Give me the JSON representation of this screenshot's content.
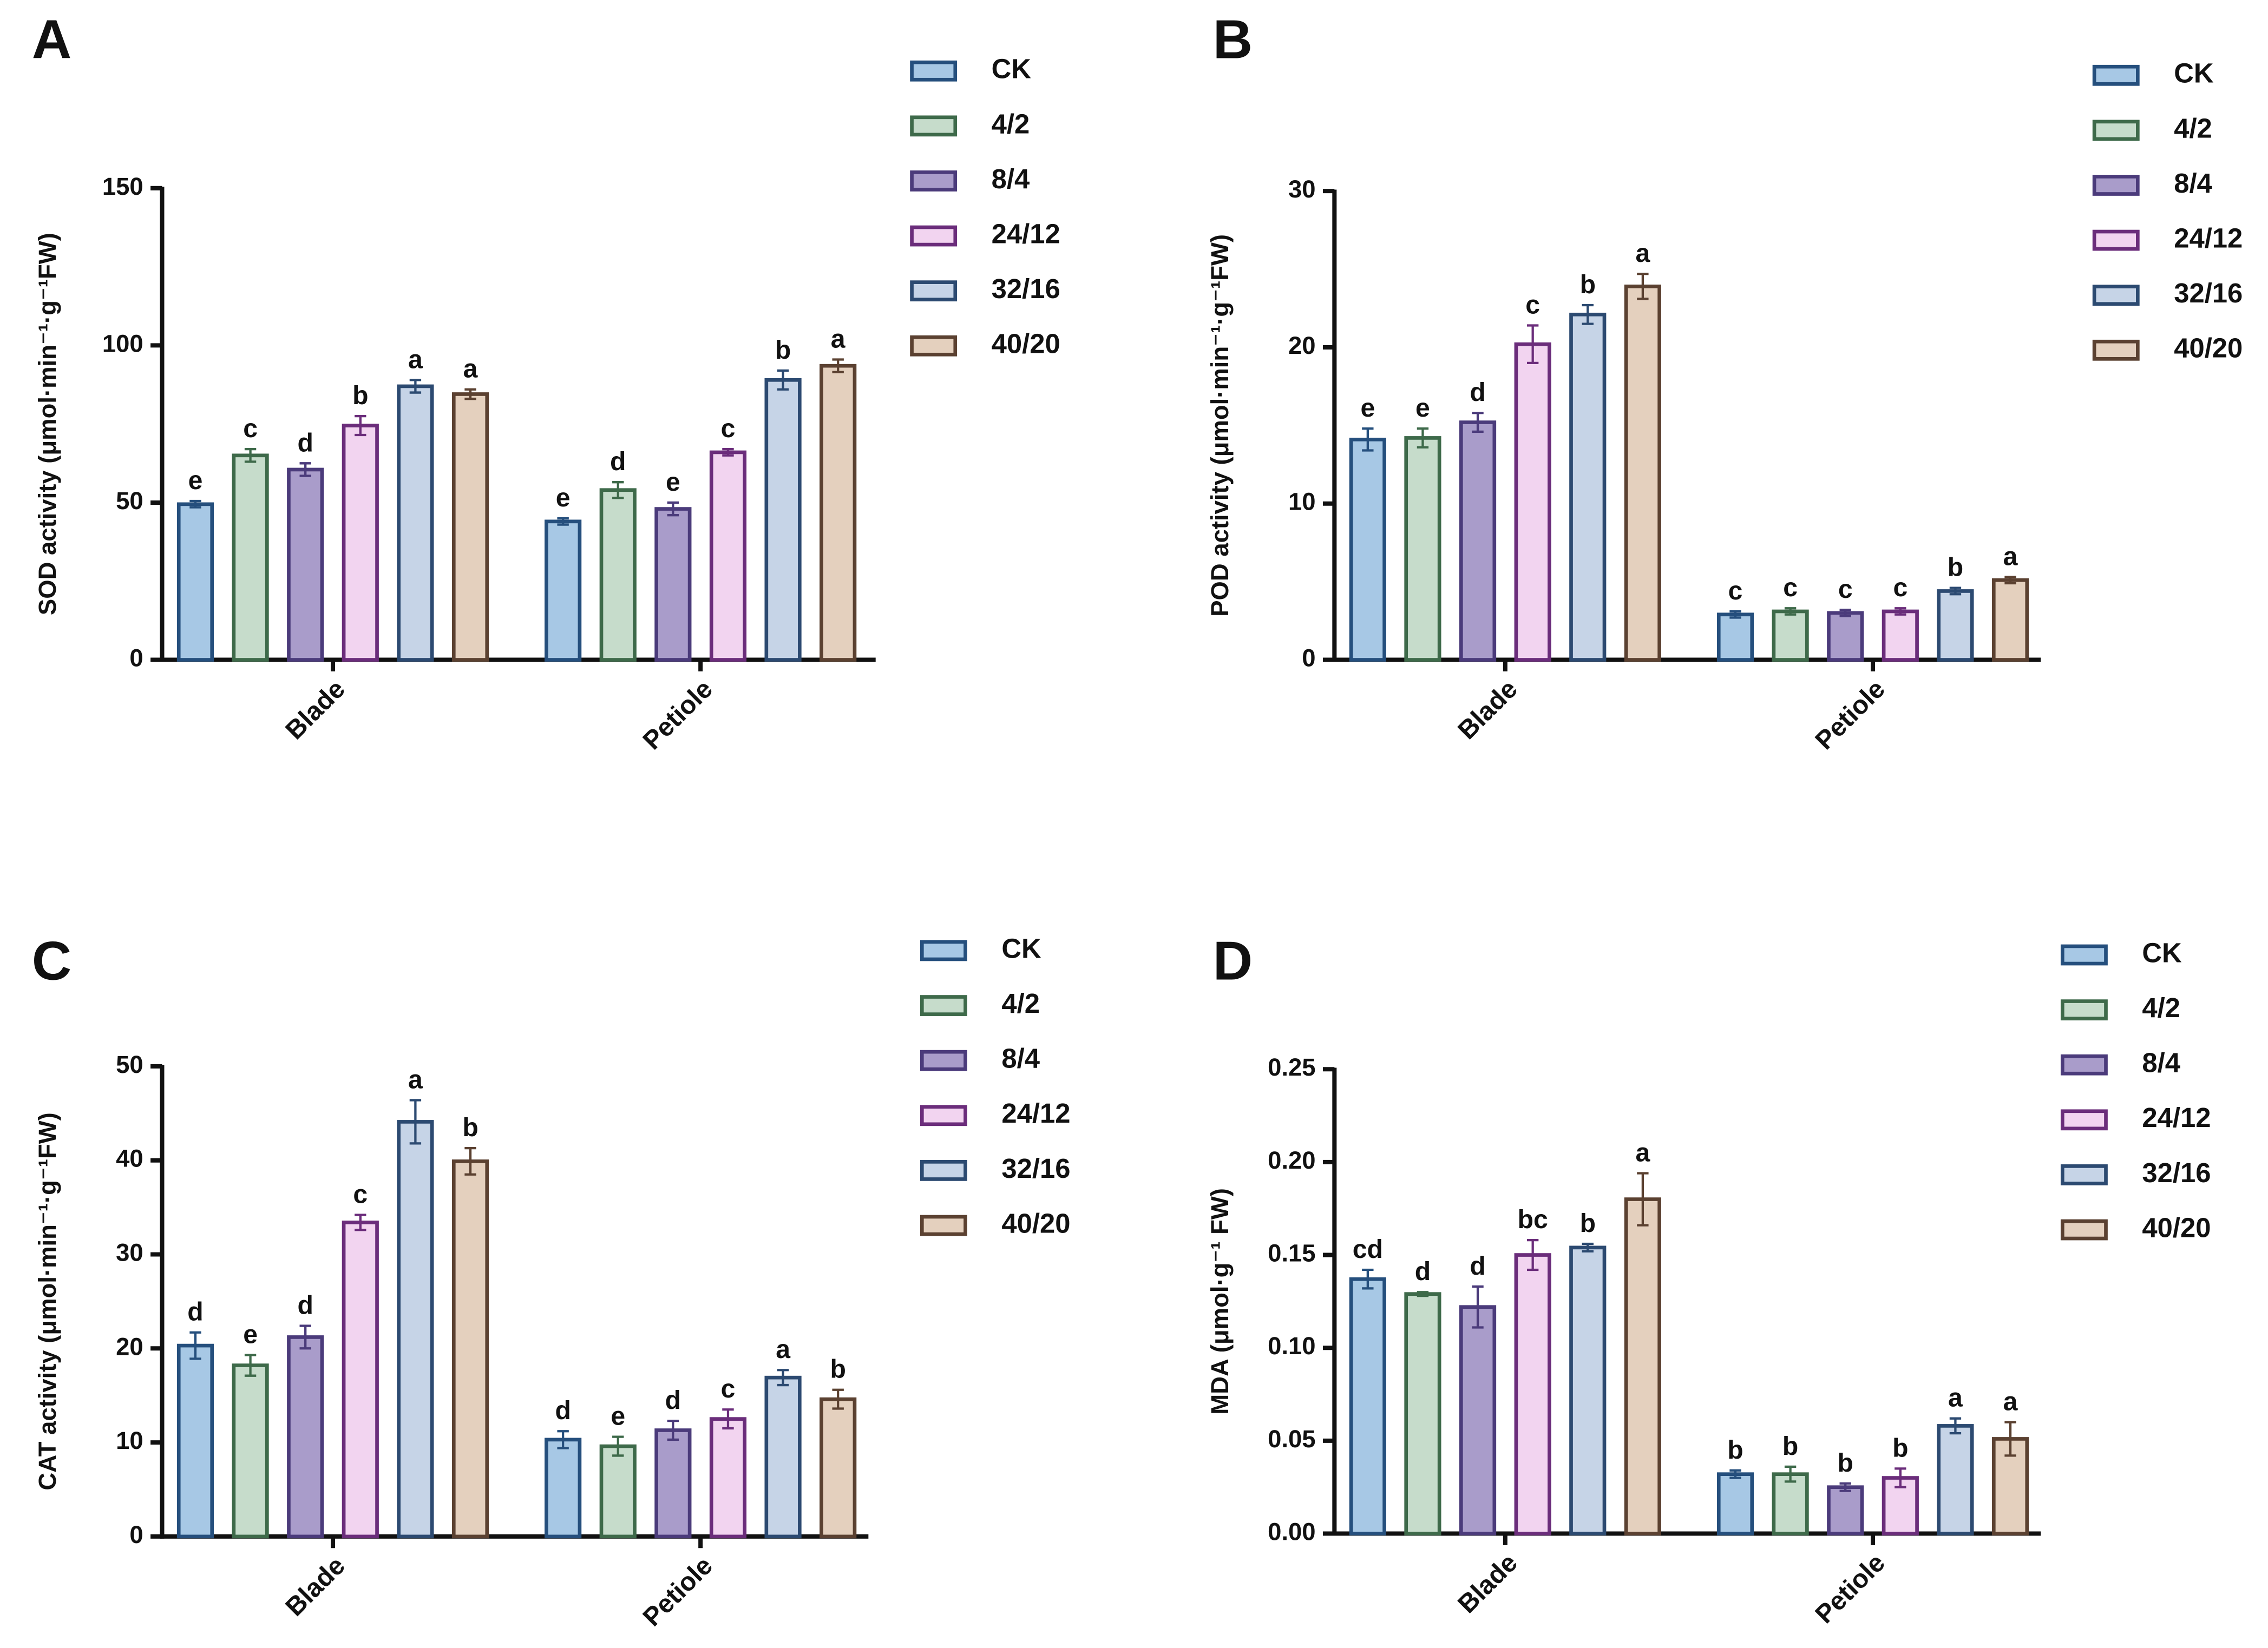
{
  "chart_data": [
    {
      "type": "bar",
      "label": "A",
      "ylabel": "SOD activity (μmol·min⁻¹·g⁻¹FW)",
      "categories": [
        "Blade",
        "Petiole"
      ],
      "ylim": [
        0,
        150
      ],
      "yticks": [
        0,
        50,
        100,
        150
      ],
      "series": [
        {
          "name": "CK",
          "color": "#a7c8e5",
          "edgecolor": "#254f7d",
          "values": [
            49.5,
            44
          ],
          "errors": [
            1,
            1
          ],
          "letters": [
            "e",
            "e"
          ]
        },
        {
          "name": "4/2",
          "color": "#c6dccb",
          "edgecolor": "#3e6a4a",
          "values": [
            65,
            54
          ],
          "errors": [
            2,
            2.5
          ],
          "letters": [
            "c",
            "d"
          ]
        },
        {
          "name": "8/4",
          "color": "#a99cca",
          "edgecolor": "#4b3b7b",
          "values": [
            60.5,
            48
          ],
          "errors": [
            2,
            2
          ],
          "letters": [
            "d",
            "e"
          ]
        },
        {
          "name": "24/12",
          "color": "#f2d4f0",
          "edgecolor": "#6b2d7b",
          "values": [
            74.5,
            66
          ],
          "errors": [
            3,
            1
          ],
          "letters": [
            "b",
            "c"
          ]
        },
        {
          "name": "32/16",
          "color": "#c6d4e7",
          "edgecolor": "#2c4a71",
          "values": [
            87,
            89
          ],
          "errors": [
            2,
            3
          ],
          "letters": [
            "a",
            "b"
          ]
        },
        {
          "name": "40/20",
          "color": "#e4d0be",
          "edgecolor": "#5b4131",
          "values": [
            84.5,
            93.5
          ],
          "errors": [
            1.5,
            2
          ],
          "letters": [
            "a",
            "a"
          ]
        }
      ]
    },
    {
      "type": "bar",
      "label": "B",
      "ylabel": "POD activity (μmol·min⁻¹·g⁻¹FW)",
      "categories": [
        "Blade",
        "Petiole"
      ],
      "ylim": [
        0,
        30
      ],
      "yticks": [
        0,
        10,
        20,
        30
      ],
      "series": [
        {
          "name": "CK",
          "color": "#a7c8e5",
          "edgecolor": "#254f7d",
          "values": [
            14.1,
            2.9
          ],
          "errors": [
            0.7,
            0.2
          ],
          "letters": [
            "e",
            "c"
          ]
        },
        {
          "name": "4/2",
          "color": "#c6dccb",
          "edgecolor": "#3e6a4a",
          "values": [
            14.2,
            3.1
          ],
          "errors": [
            0.6,
            0.2
          ],
          "letters": [
            "e",
            "c"
          ]
        },
        {
          "name": "8/4",
          "color": "#a99cca",
          "edgecolor": "#4b3b7b",
          "values": [
            15.2,
            3.0
          ],
          "errors": [
            0.6,
            0.2
          ],
          "letters": [
            "d",
            "c"
          ]
        },
        {
          "name": "24/12",
          "color": "#f2d4f0",
          "edgecolor": "#6b2d7b",
          "values": [
            20.2,
            3.1
          ],
          "errors": [
            1.2,
            0.2
          ],
          "letters": [
            "c",
            "c"
          ]
        },
        {
          "name": "32/16",
          "color": "#c6d4e7",
          "edgecolor": "#2c4a71",
          "values": [
            22.1,
            4.4
          ],
          "errors": [
            0.6,
            0.2
          ],
          "letters": [
            "b",
            "b"
          ]
        },
        {
          "name": "40/20",
          "color": "#e4d0be",
          "edgecolor": "#5b4131",
          "values": [
            23.9,
            5.1
          ],
          "errors": [
            0.8,
            0.2
          ],
          "letters": [
            "a",
            "a"
          ]
        }
      ]
    },
    {
      "type": "bar",
      "label": "C",
      "ylabel": "CAT activity (μmol·min⁻¹·g⁻¹FW)",
      "categories": [
        "Blade",
        "Petiole"
      ],
      "ylim": [
        0,
        50
      ],
      "yticks": [
        0,
        10,
        20,
        30,
        40,
        50
      ],
      "series": [
        {
          "name": "CK",
          "color": "#a7c8e5",
          "edgecolor": "#254f7d",
          "values": [
            20.3,
            10.3
          ],
          "errors": [
            1.4,
            0.9
          ],
          "letters": [
            "d",
            "d"
          ]
        },
        {
          "name": "4/2",
          "color": "#c6dccb",
          "edgecolor": "#3e6a4a",
          "values": [
            18.2,
            9.6
          ],
          "errors": [
            1.1,
            1.0
          ],
          "letters": [
            "e",
            "e"
          ]
        },
        {
          "name": "8/4",
          "color": "#a99cca",
          "edgecolor": "#4b3b7b",
          "values": [
            21.2,
            11.3
          ],
          "errors": [
            1.2,
            1.0
          ],
          "letters": [
            "d",
            "d"
          ]
        },
        {
          "name": "24/12",
          "color": "#f2d4f0",
          "edgecolor": "#6b2d7b",
          "values": [
            33.4,
            12.5
          ],
          "errors": [
            0.8,
            1.0
          ],
          "letters": [
            "c",
            "c"
          ]
        },
        {
          "name": "32/16",
          "color": "#c6d4e7",
          "edgecolor": "#2c4a71",
          "values": [
            44.1,
            16.9
          ],
          "errors": [
            2.3,
            0.8
          ],
          "letters": [
            "a",
            "a"
          ]
        },
        {
          "name": "40/20",
          "color": "#e4d0be",
          "edgecolor": "#5b4131",
          "values": [
            39.9,
            14.6
          ],
          "errors": [
            1.4,
            1.0
          ],
          "letters": [
            "b",
            "b"
          ]
        }
      ]
    },
    {
      "type": "bar",
      "label": "D",
      "ylabel": "MDA (μmol·g⁻¹ FW)",
      "categories": [
        "Blade",
        "Petiole"
      ],
      "ylim": [
        0,
        0.25
      ],
      "yticks": [
        {
          "value": 0,
          "label": "0.00"
        },
        0.05,
        {
          "value": 0.1,
          "label": "0.10"
        },
        0.15,
        {
          "value": 0.2,
          "label": "0.20"
        },
        0.25
      ],
      "series": [
        {
          "name": "CK",
          "color": "#a7c8e5",
          "edgecolor": "#254f7d",
          "values": [
            0.137,
            0.032
          ],
          "errors": [
            0.005,
            0.002
          ],
          "letters": [
            "cd",
            "b"
          ]
        },
        {
          "name": "4/2",
          "color": "#c6dccb",
          "edgecolor": "#3e6a4a",
          "values": [
            0.129,
            0.032
          ],
          "errors": [
            0.001,
            0.004
          ],
          "letters": [
            "d",
            "b"
          ]
        },
        {
          "name": "8/4",
          "color": "#a99cca",
          "edgecolor": "#4b3b7b",
          "values": [
            0.122,
            0.025
          ],
          "errors": [
            0.011,
            0.002
          ],
          "letters": [
            "d",
            "b"
          ]
        },
        {
          "name": "24/12",
          "color": "#f2d4f0",
          "edgecolor": "#6b2d7b",
          "values": [
            0.15,
            0.03
          ],
          "errors": [
            0.008,
            0.005
          ],
          "letters": [
            "bc",
            "b"
          ]
        },
        {
          "name": "32/16",
          "color": "#c6d4e7",
          "edgecolor": "#2c4a71",
          "values": [
            0.154,
            0.058
          ],
          "errors": [
            0.002,
            0.004
          ],
          "letters": [
            "b",
            "a"
          ]
        },
        {
          "name": "40/20",
          "color": "#e4d0be",
          "edgecolor": "#5b4131",
          "values": [
            0.18,
            0.051
          ],
          "errors": [
            0.014,
            0.009
          ],
          "letters": [
            "a",
            "a"
          ]
        }
      ]
    }
  ]
}
